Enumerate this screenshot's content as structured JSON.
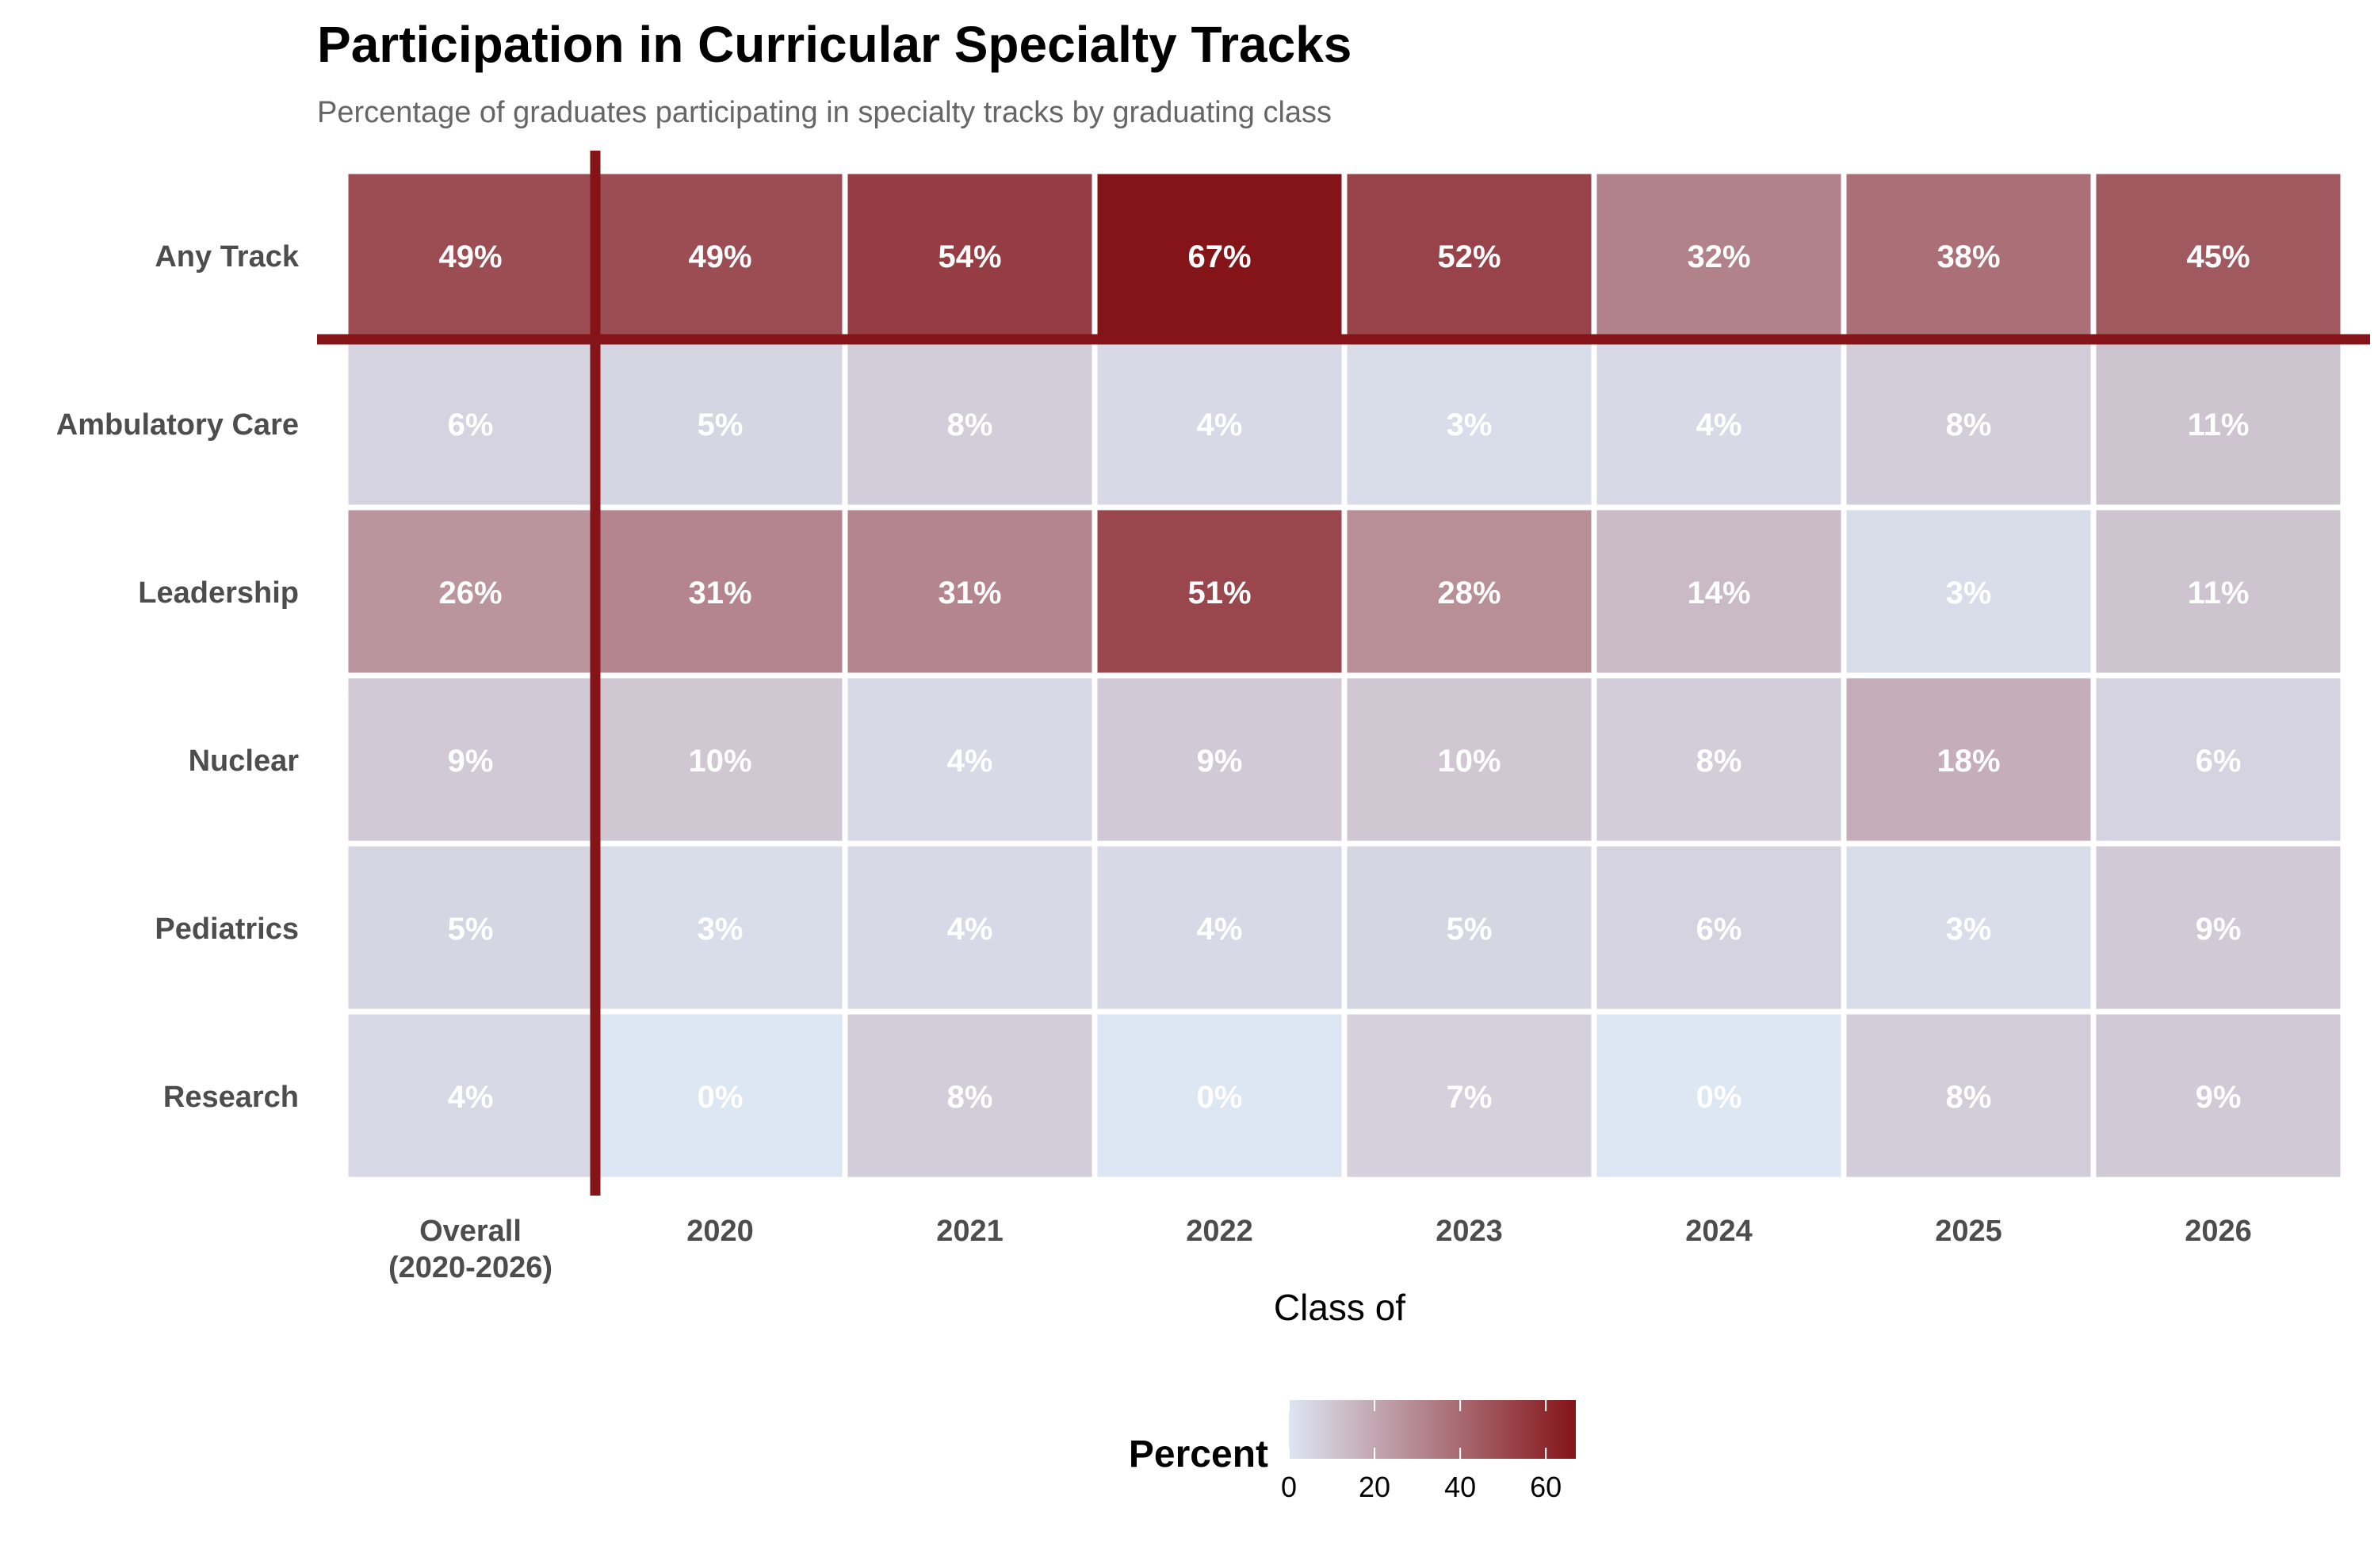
{
  "chart_data": {
    "type": "heatmap",
    "title": "Participation in Curricular Specialty Tracks",
    "subtitle": "Percentage of graduates participating in specialty tracks by graduating class",
    "xlabel": "Class of",
    "ylabel": "",
    "x_categories": [
      "Overall\n(2020-2026)",
      "2020",
      "2021",
      "2022",
      "2023",
      "2024",
      "2025",
      "2026"
    ],
    "y_categories": [
      "Any Track",
      "Ambulatory Care",
      "Leadership",
      "Nuclear",
      "Pediatrics",
      "Research"
    ],
    "values": [
      [
        49,
        49,
        54,
        67,
        52,
        32,
        38,
        45
      ],
      [
        6,
        5,
        8,
        4,
        3,
        4,
        8,
        11
      ],
      [
        26,
        31,
        31,
        51,
        28,
        14,
        3,
        11
      ],
      [
        9,
        10,
        4,
        9,
        10,
        8,
        18,
        6
      ],
      [
        5,
        3,
        4,
        4,
        5,
        6,
        3,
        9
      ],
      [
        4,
        0,
        8,
        0,
        7,
        0,
        8,
        9
      ]
    ],
    "value_suffix": "%",
    "legend": {
      "title": "Percent",
      "ticks": [
        0,
        20,
        40,
        60
      ],
      "range": [
        0,
        67
      ],
      "placement": "bottom"
    },
    "color_low": "#dde6f3",
    "color_high": "#841418",
    "highlight_color": "#841418",
    "grid": false
  }
}
